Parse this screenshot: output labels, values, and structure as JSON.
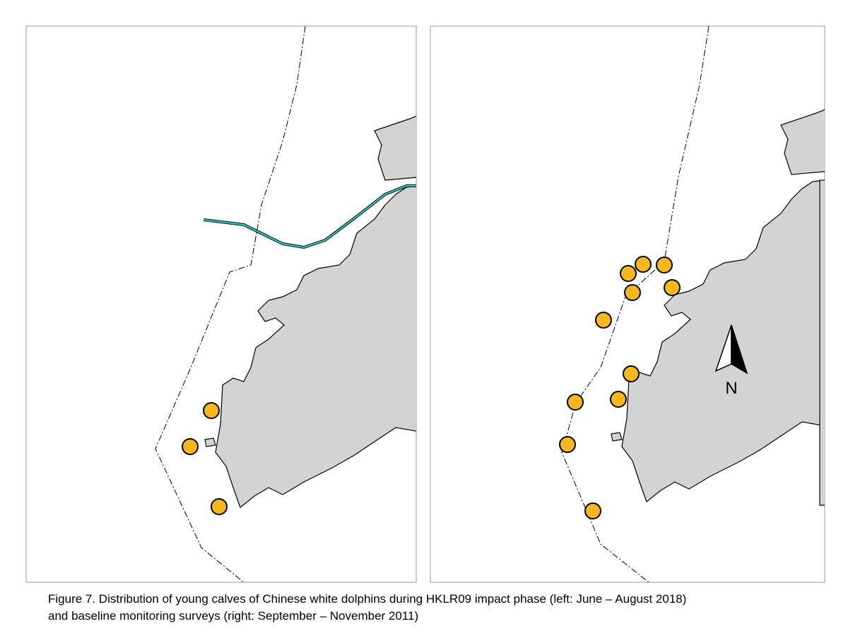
{
  "caption": {
    "lines": [
      "Figure 7.  Distribution of young calves of Chinese white dolphins during HKLR09 impact phase (left: June – August 2018)",
      "and baseline monitoring surveys (right: September – November 2011)"
    ]
  },
  "north_arrow": {
    "label": "N"
  }
}
